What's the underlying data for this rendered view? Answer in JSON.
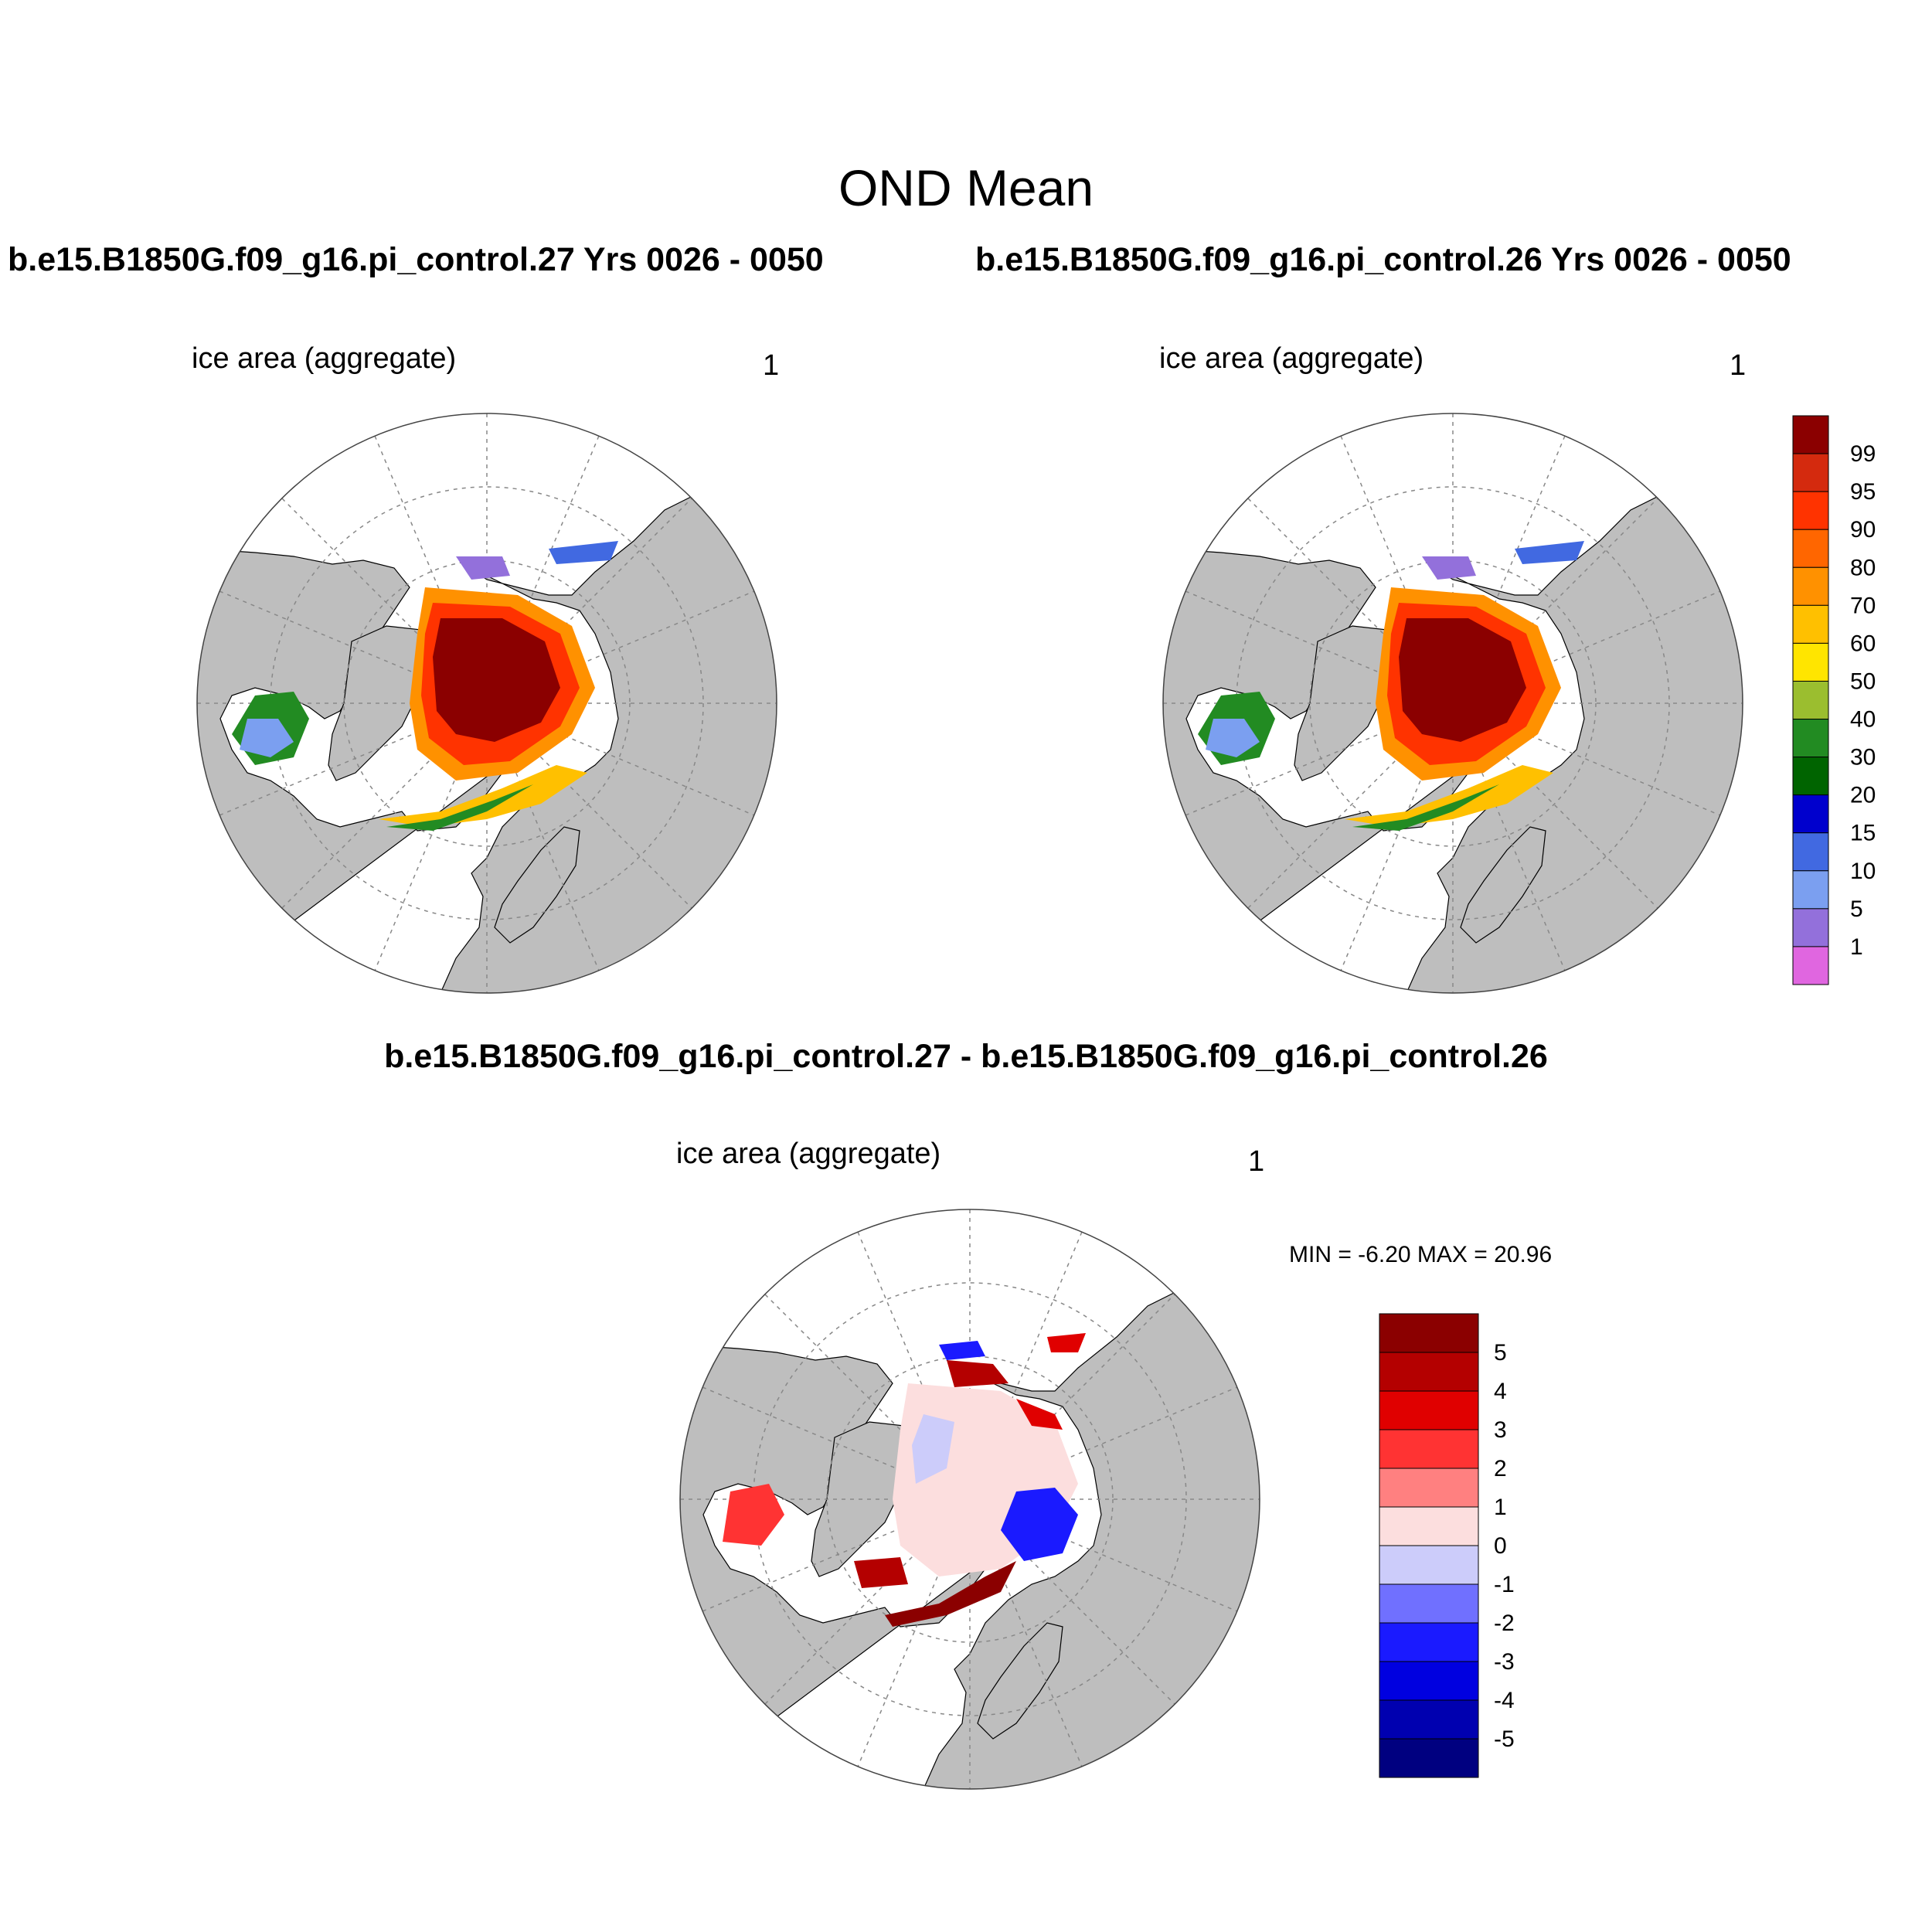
{
  "title": "OND Mean",
  "panels": [
    {
      "case_title": "b.e15.B1850G.f09_g16.pi_control.27  Yrs 0026 - 0050",
      "left_label": "ice area  (aggregate)",
      "right_label": "1"
    },
    {
      "case_title": "b.e15.B1850G.f09_g16.pi_control.26  Yrs 0026 - 0050",
      "left_label": "ice area  (aggregate)",
      "right_label": "1"
    },
    {
      "case_title": "b.e15.B1850G.f09_g16.pi_control.27 - b.e15.B1850G.f09_g16.pi_control.26",
      "left_label": "ice area  (aggregate)",
      "right_label": "1",
      "min_max": "MIN =  -6.20 MAX =  20.96"
    }
  ],
  "colorbar_top": {
    "labels": [
      "99",
      "95",
      "90",
      "80",
      "70",
      "60",
      "50",
      "40",
      "30",
      "20",
      "15",
      "10",
      "5",
      "1"
    ],
    "colors": [
      "#8B0000",
      "#D42A0E",
      "#FF3300",
      "#FF6600",
      "#FF9100",
      "#FFC000",
      "#FFE500",
      "#9BBE2F",
      "#228B22",
      "#006400",
      "#0000CD",
      "#4169E1",
      "#7B9FF0",
      "#9370DB",
      "#E066E0"
    ]
  },
  "colorbar_diff": {
    "labels": [
      "5",
      "4",
      "3",
      "2",
      "1",
      "0",
      "-1",
      "-2",
      "-3",
      "-4",
      "-5"
    ],
    "colors": [
      "#8B0000",
      "#B40000",
      "#E00000",
      "#FF3333",
      "#FF8080",
      "#FCDEDE",
      "#CCCCFA",
      "#7070FF",
      "#1A1AFF",
      "#0000E0",
      "#0000B0",
      "#000080"
    ]
  },
  "colors": {
    "land": "#BEBEBE",
    "ocean": "#FFFFFF",
    "grid": "#888888"
  }
}
